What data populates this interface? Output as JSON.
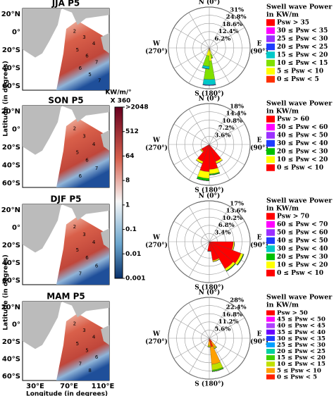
{
  "maps": {
    "ylabel": [
      "Latitude (in degrees)",
      "Latitude (in degrees)"
    ],
    "xlabel": "Longitude (in degrees)",
    "lon_ticks": [
      "30°E",
      "70°E",
      "110°E"
    ],
    "colorbar_title": [
      "KW/m/°",
      "X 360"
    ],
    "colorbar_ticks": [
      ">2048",
      "512",
      "64",
      "8",
      "1",
      "0.1",
      "0.01",
      "0.001"
    ],
    "panels": [
      {
        "title": "JJA P5",
        "lat_ticks": [
          "20°N",
          "0°",
          "20°S",
          "40°S",
          "60°S"
        ],
        "contour_labels": [
          "2",
          "3",
          "4",
          "5",
          "6",
          "7",
          "6",
          "5",
          "7"
        ]
      },
      {
        "title": "SON P5",
        "lat_ticks": [
          "20°N",
          "0°",
          "20°S",
          "40°S",
          "60°S"
        ],
        "contour_labels": [
          "2",
          "3",
          "4",
          "5",
          "6",
          "7",
          "6"
        ]
      },
      {
        "title": "DJF P5",
        "lat_ticks": [
          "20°N",
          "0°",
          "20°S",
          "40°S",
          "60°S"
        ],
        "contour_labels": [
          "2",
          "3",
          "4",
          "5",
          "6",
          "6",
          "7"
        ]
      },
      {
        "title": "MAM P5",
        "lat_ticks": [
          "20°N",
          "0°",
          "20°S",
          "40°S",
          "60°S"
        ],
        "contour_labels": [
          "2",
          "3",
          "4",
          "5",
          "5",
          "6",
          "7",
          "8"
        ]
      }
    ]
  },
  "chart_data": [
    {
      "type": "rose",
      "north": "N (0°)",
      "south": "S (180°)",
      "west": [
        "W",
        "(270°)"
      ],
      "east": [
        "E",
        "(90°)"
      ],
      "rlim": [
        0,
        31
      ],
      "rticks": [
        {
          "value": 6.2,
          "label": "6.2%"
        },
        {
          "value": 12.4,
          "label": "12.4%"
        },
        {
          "value": 18.6,
          "label": "18.6%"
        },
        {
          "value": 24.8,
          "label": "24.8%"
        },
        {
          "value": 31,
          "label": "31%"
        }
      ],
      "directions": [
        170,
        180,
        190
      ],
      "legend_title": [
        "Swell wave Power",
        "in KW/m"
      ],
      "series": [
        {
          "name": "Psw > 35",
          "color": "#ff0000",
          "values": [
            0,
            0,
            0
          ]
        },
        {
          "name": "30 ≤ Psw < 35",
          "color": "#ff00ff",
          "values": [
            0,
            0,
            0
          ]
        },
        {
          "name": "25 ≤ Psw < 30",
          "color": "#9b30ff",
          "values": [
            0,
            0,
            0
          ]
        },
        {
          "name": "20 ≤ Psw < 25",
          "color": "#1e3cff",
          "values": [
            0,
            0.5,
            0
          ]
        },
        {
          "name": "15 ≤ Psw < 20",
          "color": "#00c8c8",
          "values": [
            0,
            4,
            2
          ]
        },
        {
          "name": "10 ≤ Psw < 15",
          "color": "#80e000",
          "values": [
            3,
            14,
            8
          ]
        },
        {
          "name": "5 ≤ Psw < 10",
          "color": "#ffff00",
          "values": [
            4,
            8,
            5
          ]
        },
        {
          "name": "0 ≤ Psw < 5",
          "color": "#ff3000",
          "values": [
            1,
            2,
            1
          ]
        }
      ]
    },
    {
      "type": "rose",
      "north": "N (0°)",
      "south": "S (180°)",
      "west": [
        "W",
        "(270°)"
      ],
      "east": [
        "E",
        "(90°)"
      ],
      "rlim": [
        0,
        18
      ],
      "rticks": [
        {
          "value": 3.6,
          "label": "3.6%"
        },
        {
          "value": 7.2,
          "label": "7.2%"
        },
        {
          "value": 10.8,
          "label": "10.8%"
        },
        {
          "value": 14.4,
          "label": "14.4%"
        },
        {
          "value": 18,
          "label": "18%"
        }
      ],
      "directions": [
        150,
        170,
        190,
        210,
        230
      ],
      "legend_title": [
        "Swell wave Power",
        "in KW/m"
      ],
      "series": [
        {
          "name": "Psw > 60",
          "color": "#ff0000",
          "values": [
            0,
            0,
            0,
            0,
            0
          ]
        },
        {
          "name": "50 ≤ Psw < 60",
          "color": "#ff00ff",
          "values": [
            0,
            0,
            0,
            0,
            0
          ]
        },
        {
          "name": "40 ≤ Psw < 50",
          "color": "#9b30ff",
          "values": [
            0,
            0,
            0,
            0,
            0
          ]
        },
        {
          "name": "30 ≤ Psw < 40",
          "color": "#1e3cff",
          "values": [
            0,
            0,
            0,
            0,
            0
          ]
        },
        {
          "name": "20 ≤ Psw < 30",
          "color": "#00c000",
          "values": [
            0,
            0.5,
            1,
            0,
            0
          ]
        },
        {
          "name": "10 ≤ Psw < 20",
          "color": "#ffff00",
          "values": [
            1,
            2,
            3,
            1,
            0.5
          ]
        },
        {
          "name": "0 ≤ Psw < 10",
          "color": "#ff0000",
          "values": [
            8,
            11,
            12,
            8,
            4
          ]
        }
      ]
    },
    {
      "type": "rose",
      "north": "N (0°)",
      "south": "S (180°)",
      "west": [
        "W",
        "(270°)"
      ],
      "east": [
        "E",
        "(90°)"
      ],
      "rlim": [
        0,
        17
      ],
      "rticks": [
        {
          "value": 3.4,
          "label": "3.4%"
        },
        {
          "value": 6.8,
          "label": "6.8%"
        },
        {
          "value": 10.2,
          "label": "10.2%"
        },
        {
          "value": 13.6,
          "label": "13.6%"
        },
        {
          "value": 17,
          "label": "17%"
        }
      ],
      "directions": [
        100,
        120,
        140,
        160,
        180
      ],
      "legend_title": [
        "Swell wave Power",
        "in KW/m"
      ],
      "series": [
        {
          "name": "Psw > 70",
          "color": "#ff0000",
          "values": [
            0,
            0,
            0,
            0,
            0
          ]
        },
        {
          "name": "60 ≤ Psw < 70",
          "color": "#ff00ff",
          "values": [
            0,
            0,
            0,
            0,
            0
          ]
        },
        {
          "name": "50 ≤ Psw < 60",
          "color": "#9b30ff",
          "values": [
            0,
            0,
            0,
            0,
            0
          ]
        },
        {
          "name": "40 ≤ Psw < 50",
          "color": "#1e3cff",
          "values": [
            0,
            0,
            0,
            0,
            0
          ]
        },
        {
          "name": "30 ≤ Psw < 40",
          "color": "#00c8c8",
          "values": [
            0,
            0,
            0,
            0,
            0
          ]
        },
        {
          "name": "20 ≤ Psw < 30",
          "color": "#00c000",
          "values": [
            0,
            0.3,
            0.3,
            0,
            0
          ]
        },
        {
          "name": "10 ≤ Psw < 20",
          "color": "#ffff00",
          "values": [
            0.5,
            1,
            1,
            0.5,
            0
          ]
        },
        {
          "name": "0 ≤ Psw < 10",
          "color": "#ff0000",
          "values": [
            10,
            14,
            13,
            8,
            4
          ]
        }
      ]
    },
    {
      "type": "rose",
      "north": "N (0°)",
      "south": "S (180°)",
      "west": [
        "W",
        "(270°)"
      ],
      "east": [
        "E",
        "(90°)"
      ],
      "rlim": [
        0,
        28
      ],
      "rticks": [
        {
          "value": 5.6,
          "label": "5.6%"
        },
        {
          "value": 11.2,
          "label": "11.2%"
        },
        {
          "value": 16.8,
          "label": "16.8%"
        },
        {
          "value": 22.4,
          "label": "22.4%"
        },
        {
          "value": 28,
          "label": "28%"
        }
      ],
      "directions": [
        150,
        165,
        180
      ],
      "legend_title": [
        "Swell wave Power",
        "in KW/m"
      ],
      "series": [
        {
          "name": "Psw > 50",
          "color": "#ff0000",
          "values": [
            0,
            0,
            0
          ]
        },
        {
          "name": "45 ≤ Psw < 50",
          "color": "#ff00ff",
          "values": [
            0,
            0,
            0
          ]
        },
        {
          "name": "40 ≤ Psw < 45",
          "color": "#b040ff",
          "values": [
            0,
            0,
            0
          ]
        },
        {
          "name": "35 ≤ Psw < 40",
          "color": "#6a00ff",
          "values": [
            0,
            0,
            0
          ]
        },
        {
          "name": "30 ≤ Psw < 35",
          "color": "#1e3cff",
          "values": [
            0,
            0,
            0
          ]
        },
        {
          "name": "25 ≤ Psw < 30",
          "color": "#00a0ff",
          "values": [
            0,
            0,
            0
          ]
        },
        {
          "name": "20 ≤ Psw < 25",
          "color": "#00d0a0",
          "values": [
            0,
            0,
            0
          ]
        },
        {
          "name": "15 ≤ Psw < 20",
          "color": "#40d000",
          "values": [
            0,
            1,
            0
          ]
        },
        {
          "name": "10 ≤ Psw < 15",
          "color": "#c0e000",
          "values": [
            1,
            4,
            1
          ]
        },
        {
          "name": "5 ≤ Psw < 10",
          "color": "#ffa000",
          "values": [
            4,
            12,
            3
          ]
        },
        {
          "name": "0 ≤ Psw < 5",
          "color": "#ff2000",
          "values": [
            3,
            6,
            2
          ]
        }
      ]
    }
  ]
}
